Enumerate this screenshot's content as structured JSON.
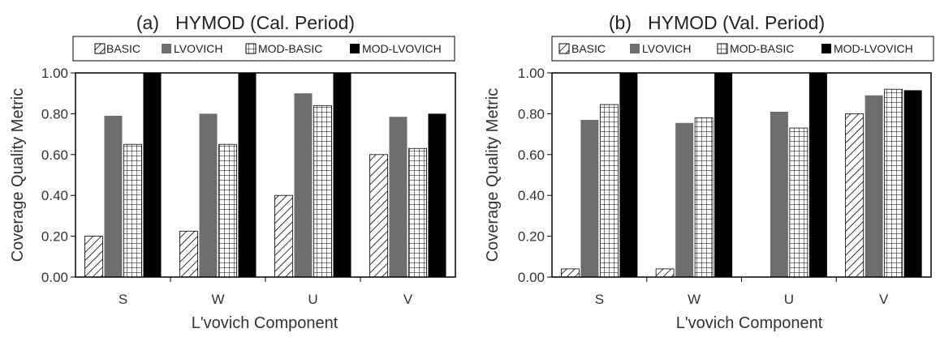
{
  "figure": {
    "panels": [
      {
        "tag": "(a)",
        "title": "HYMOD (Cal. Period)",
        "ylabel": "Coverage Quality Metric",
        "xlabel": "L'vovich Component"
      },
      {
        "tag": "(b)",
        "title": "HYMOD (Val. Period)",
        "ylabel": "Coverage Quality Metric",
        "xlabel": "L'vovich Component"
      }
    ]
  },
  "colors": {
    "lvovich": "#6e6e6e",
    "mod_lvovich": "#000000",
    "hatch": "#000000",
    "axis": "#000000"
  },
  "chart_data": [
    {
      "type": "bar",
      "title": "HYMOD (Cal. Period)",
      "xlabel": "L'vovich Component",
      "ylabel": "Coverage Quality Metric",
      "categories": [
        "S",
        "W",
        "U",
        "V"
      ],
      "ylim": [
        0,
        1
      ],
      "yticks": [
        "0.00",
        "0.20",
        "0.40",
        "0.60",
        "0.80",
        "1.00"
      ],
      "grid": false,
      "legend_position": "top",
      "series": [
        {
          "name": "BASIC",
          "pattern": "diagonal-hatch",
          "values": [
            0.2,
            0.225,
            0.4,
            0.6
          ]
        },
        {
          "name": "LVOVICH",
          "pattern": "solid-gray",
          "values": [
            0.79,
            0.8,
            0.9,
            0.785
          ]
        },
        {
          "name": "MOD-BASIC",
          "pattern": "grid-hatch",
          "values": [
            0.65,
            0.65,
            0.84,
            0.63
          ]
        },
        {
          "name": "MOD-LVOVICH",
          "pattern": "solid-black",
          "values": [
            1.0,
            1.0,
            1.0,
            0.8
          ]
        }
      ]
    },
    {
      "type": "bar",
      "title": "HYMOD (Val. Period)",
      "xlabel": "L'vovich Component",
      "ylabel": "Coverage Quality Metric",
      "categories": [
        "S",
        "W",
        "U",
        "V"
      ],
      "ylim": [
        0,
        1
      ],
      "yticks": [
        "0.00",
        "0.20",
        "0.40",
        "0.60",
        "0.80",
        "1.00"
      ],
      "grid": false,
      "legend_position": "top",
      "series": [
        {
          "name": "BASIC",
          "pattern": "diagonal-hatch",
          "values": [
            0.04,
            0.04,
            0.0,
            0.8
          ]
        },
        {
          "name": "LVOVICH",
          "pattern": "solid-gray",
          "values": [
            0.77,
            0.755,
            0.81,
            0.89
          ]
        },
        {
          "name": "MOD-BASIC",
          "pattern": "grid-hatch",
          "values": [
            0.845,
            0.78,
            0.73,
            0.92
          ]
        },
        {
          "name": "MOD-LVOVICH",
          "pattern": "solid-black",
          "values": [
            1.0,
            1.0,
            1.0,
            0.915
          ]
        }
      ]
    }
  ]
}
